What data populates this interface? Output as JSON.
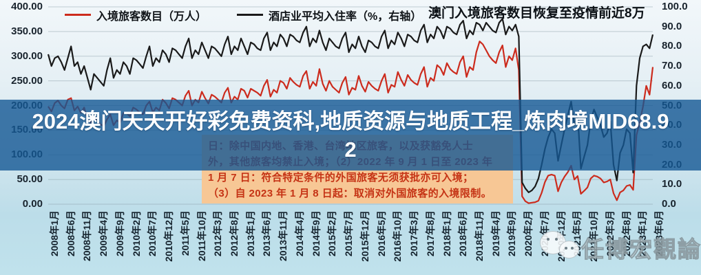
{
  "colors": {
    "visitors_line": "#cc2b1d",
    "occupancy_line": "#1a1a1a",
    "grid": "rgba(130,150,162,0.45)",
    "banner_bg": "rgba(20,87,148,0.80)",
    "annotation_bg": "#f7c795",
    "annotation_text": "#c53315"
  },
  "legend": {
    "item1": "入境旅客数目（万人）",
    "item2": "酒店业平均入住率（%，右轴）"
  },
  "title": "澳门入境旅客数目恢复至疫情前近8万",
  "banner": {
    "line1": "2024澳门天天开好彩免费资科,地质资源与地质工程_炼肉境MID68.9",
    "line2": "2"
  },
  "annotation": {
    "lines": [
      "日：除中国内地、香港、台湾地区旅客，以及获豁免人士",
      "外，其他旅客均禁止入境；（2）2022 年 9 月 1 日至 2023 年",
      "1 月 7 日：符合特定条件的外国旅客无须获批亦可入境；",
      "（3）自 2023 年 1 月 8 日起：取消对外国旅客的入境限制。"
    ]
  },
  "watermark": {
    "text": "任博宏觀論道",
    "icon": "wechat-icon"
  },
  "chart_data": {
    "type": "line",
    "title": "澳门入境旅客数目恢复至疫情前近8万",
    "grid": true,
    "legend_position": "top",
    "x_start": "2008-01",
    "x_end": "2023-06",
    "x_tick_labels": [
      "2008年1月",
      "2008年6月",
      "2008年11月",
      "2009年4月",
      "2009年9月",
      "2010年2月",
      "2010年7月",
      "2010年12月",
      "2011年5月",
      "2011年10月",
      "2012年3月",
      "2012年8月",
      "2013年1月",
      "2013年6月",
      "2013年11月",
      "2014年4月",
      "2014年9月",
      "2015年2月",
      "2015年7月",
      "2015年12月",
      "2016年5月",
      "2016年10月",
      "2017年3月",
      "2017年8月",
      "2018年1月",
      "2018年6月",
      "2018年11月",
      "2019年4月",
      "2019年9月",
      "2020年2月",
      "2020年7月",
      "2020年12月",
      "2021年5月",
      "2021年10月",
      "2022年3月",
      "2022年8月",
      "2023年1月",
      "2023年6月"
    ],
    "left_axis": {
      "label": "入境旅客数目（万人）",
      "min": 0,
      "max": 400,
      "ticks": [
        "400.00",
        "350.00",
        "300.00",
        "250.00",
        "200.00",
        "150.00",
        "100.00",
        "50.00",
        "0.00"
      ]
    },
    "right_axis": {
      "label": "酒店业平均入住率（%）",
      "min": 0,
      "max": 100,
      "ticks": [
        "100.0",
        "90.0",
        "80.0",
        "70.0",
        "60.0",
        "50.0",
        "40.0",
        "30.0",
        "20.0",
        "10.0",
        "0.0"
      ]
    },
    "series": [
      {
        "name": "入境旅客数目（万人）",
        "axis": "left",
        "color": "#cc2b1d",
        "values": [
          198,
          188,
          205,
          210,
          200,
          194,
          212,
          215,
          190,
          198,
          185,
          196,
          172,
          165,
          178,
          170,
          162,
          158,
          172,
          182,
          160,
          170,
          165,
          185,
          185,
          178,
          196,
          192,
          186,
          182,
          200,
          208,
          186,
          196,
          190,
          212,
          205,
          194,
          215,
          212,
          206,
          200,
          220,
          230,
          200,
          212,
          206,
          228,
          215,
          204,
          222,
          218,
          212,
          206,
          226,
          236,
          206,
          218,
          212,
          234,
          230,
          216,
          234,
          230,
          226,
          220,
          240,
          252,
          218,
          232,
          226,
          250,
          246,
          234,
          256,
          248,
          242,
          238,
          260,
          270,
          234,
          248,
          240,
          274,
          244,
          230,
          250,
          238,
          232,
          226,
          246,
          258,
          222,
          236,
          232,
          260,
          240,
          228,
          248,
          240,
          234,
          230,
          250,
          264,
          226,
          242,
          238,
          268,
          252,
          240,
          262,
          252,
          246,
          242,
          264,
          278,
          238,
          256,
          250,
          282,
          276,
          262,
          286,
          274,
          268,
          264,
          288,
          300,
          258,
          278,
          272,
          308,
          330,
          324,
          312,
          300,
          292,
          286,
          308,
          322,
          278,
          300,
          292,
          316,
          272,
          16,
          6,
          2,
          3,
          4,
          7,
          23,
          45,
          58,
          60,
          58,
          26,
          44,
          56,
          65,
          78,
          50,
          57,
          21,
          27,
          34,
          52,
          58,
          56,
          52,
          44,
          46,
          50,
          22,
          8,
          24,
          28,
          37,
          39,
          29,
          140,
          166,
          198,
          240,
          222,
          278
        ]
      },
      {
        "name": "酒店业平均入住率（%，右轴）",
        "axis": "right",
        "color": "#1a1a1a",
        "values": [
          76,
          70,
          74,
          75,
          72,
          68,
          74,
          80,
          70,
          72,
          66,
          70,
          64,
          58,
          66,
          64,
          62,
          60,
          68,
          74,
          64,
          68,
          66,
          72,
          70,
          66,
          74,
          73,
          71,
          69,
          75,
          80,
          70,
          74,
          72,
          78,
          76,
          72,
          79,
          78,
          76,
          74,
          80,
          84,
          74,
          78,
          76,
          82,
          78,
          74,
          80,
          79,
          77,
          75,
          81,
          85,
          76,
          80,
          78,
          84,
          80,
          76,
          82,
          81,
          79,
          78,
          84,
          87,
          78,
          82,
          80,
          86,
          84,
          80,
          86,
          85,
          83,
          82,
          87,
          90,
          80,
          84,
          82,
          88,
          82,
          78,
          84,
          82,
          80,
          79,
          84,
          87,
          77,
          81,
          79,
          85,
          80,
          77,
          83,
          82,
          80,
          79,
          85,
          88,
          79,
          83,
          81,
          87,
          84,
          80,
          86,
          85,
          83,
          82,
          88,
          91,
          82,
          86,
          84,
          90,
          88,
          84,
          90,
          89,
          87,
          86,
          91,
          93,
          84,
          88,
          86,
          92,
          91,
          88,
          92,
          90,
          88,
          87,
          92,
          94,
          86,
          90,
          88,
          91,
          85,
          11,
          8,
          6,
          7,
          9,
          13,
          20,
          28,
          34,
          38,
          36,
          22,
          30,
          38,
          45,
          52,
          40,
          46,
          18,
          24,
          30,
          42,
          48,
          44,
          40,
          34,
          36,
          42,
          20,
          12,
          26,
          30,
          38,
          36,
          16,
          60,
          74,
          80,
          81,
          79,
          86
        ]
      }
    ]
  }
}
